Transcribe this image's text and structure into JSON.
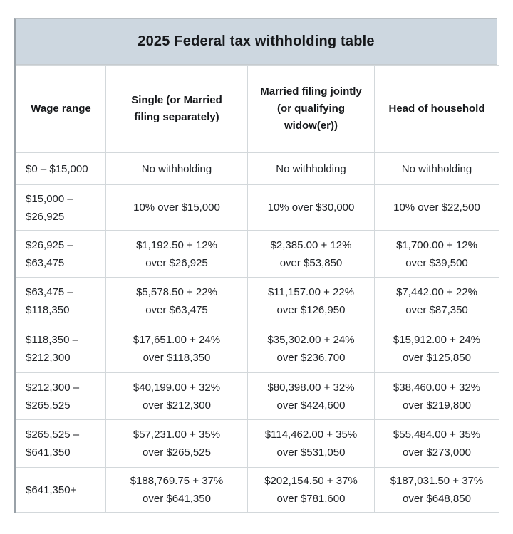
{
  "colors": {
    "title_background": "#cdd7e0",
    "outer_border": "#99a1a8",
    "grid_line": "#d3d8db",
    "text": "#202327",
    "page_background": "#ffffff"
  },
  "chart_data": {
    "type": "table",
    "title": "2025 Federal tax withholding table",
    "columns": [
      "Wage range",
      "Single (or Married\nfiling separately)",
      "Married filing jointly\n(or qualifying\nwidow(er))",
      "Head of household"
    ],
    "rows": [
      [
        "$0 – $15,000",
        "No withholding",
        "No withholding",
        "No withholding"
      ],
      [
        "$15,000 –\n$26,925",
        "10% over $15,000",
        "10% over $30,000",
        "10% over $22,500"
      ],
      [
        "$26,925 –\n$63,475",
        "$1,192.50 + 12%\nover $26,925",
        "$2,385.00 + 12%\nover $53,850",
        "$1,700.00 + 12%\nover $39,500"
      ],
      [
        "$63,475 –\n$118,350",
        "$5,578.50 + 22%\nover $63,475",
        "$11,157.00 + 22%\nover $126,950",
        "$7,442.00 + 22%\nover $87,350"
      ],
      [
        "$118,350 –\n$212,300",
        "$17,651.00 + 24%\nover $118,350",
        "$35,302.00 + 24%\nover $236,700",
        "$15,912.00 + 24%\nover $125,850"
      ],
      [
        "$212,300 –\n$265,525",
        "$40,199.00 + 32%\nover $212,300",
        "$80,398.00 + 32%\nover $424,600",
        "$38,460.00 + 32%\nover $219,800"
      ],
      [
        "$265,525 –\n$641,350",
        "$57,231.00 + 35%\nover $265,525",
        "$114,462.00 + 35%\nover $531,050",
        "$55,484.00 + 35%\nover $273,000"
      ],
      [
        "$641,350+",
        "$188,769.75 + 37%\nover $641,350",
        "$202,154.50 + 37%\nover $781,600",
        "$187,031.50 + 37%\nover $648,850"
      ]
    ]
  }
}
